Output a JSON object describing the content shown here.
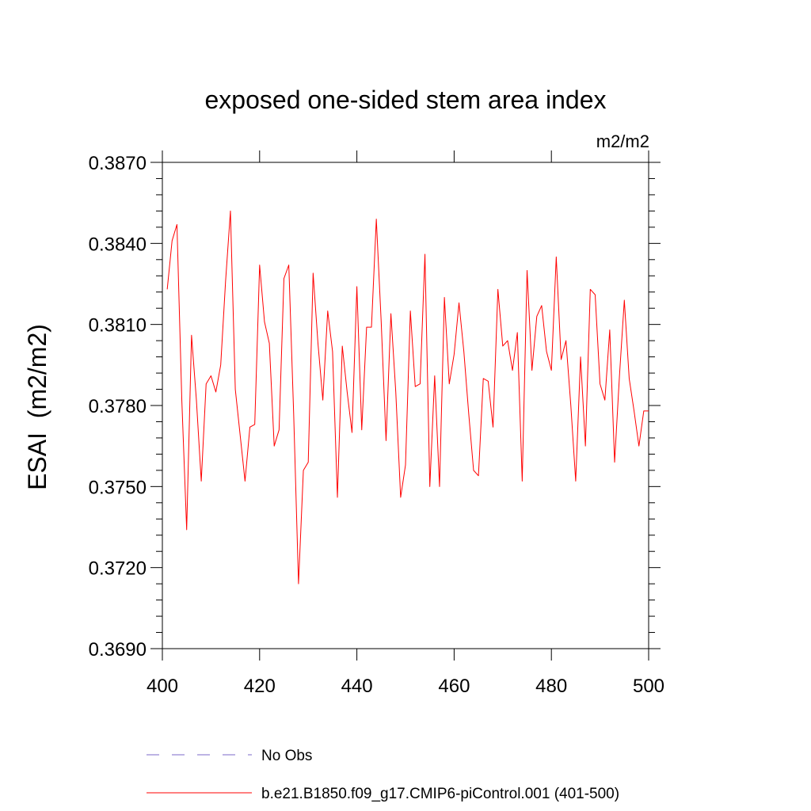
{
  "chart_data": {
    "type": "line",
    "title": "exposed one-sided stem area index",
    "units_label": "m2/m2",
    "ylabel": "ESAI  (m2/m2)",
    "xlabel": "",
    "xlim": [
      400,
      500
    ],
    "ylim": [
      0.369,
      0.387
    ],
    "xticks": [
      400,
      420,
      440,
      460,
      480,
      500
    ],
    "xtick_labels": [
      "400",
      "420",
      "440",
      "460",
      "480",
      "500"
    ],
    "yticks": [
      0.369,
      0.372,
      0.375,
      0.378,
      0.381,
      0.384,
      0.387
    ],
    "ytick_labels": [
      "0.3690",
      "0.3720",
      "0.3750",
      "0.3780",
      "0.3810",
      "0.3840",
      "0.3870"
    ],
    "grid": false,
    "legend_position": "bottom",
    "legend": [
      {
        "label": "No Obs",
        "color": "#7b68c8",
        "style": "dashed"
      },
      {
        "label": "b.e21.B1850.f09_g17.CMIP6-piControl.001 (401-500)",
        "color": "#ff0000",
        "style": "solid"
      }
    ],
    "series": [
      {
        "name": "b.e21.B1850.f09_g17.CMIP6-piControl.001 (401-500)",
        "color": "#ff0000",
        "x": [
          401,
          402,
          403,
          404,
          405,
          406,
          407,
          408,
          409,
          410,
          411,
          412,
          413,
          414,
          415,
          416,
          417,
          418,
          419,
          420,
          421,
          422,
          423,
          424,
          425,
          426,
          427,
          428,
          429,
          430,
          431,
          432,
          433,
          434,
          435,
          436,
          437,
          438,
          439,
          440,
          441,
          442,
          443,
          444,
          445,
          446,
          447,
          448,
          449,
          450,
          451,
          452,
          453,
          454,
          455,
          456,
          457,
          458,
          459,
          460,
          461,
          462,
          463,
          464,
          465,
          466,
          467,
          468,
          469,
          470,
          471,
          472,
          473,
          474,
          475,
          476,
          477,
          478,
          479,
          480,
          481,
          482,
          483,
          484,
          485,
          486,
          487,
          488,
          489,
          490,
          491,
          492,
          493,
          494,
          495,
          496,
          497,
          498,
          499,
          500
        ],
        "values": [
          0.3823,
          0.3841,
          0.3847,
          0.3782,
          0.3734,
          0.3806,
          0.3782,
          0.3752,
          0.3788,
          0.3791,
          0.3785,
          0.3795,
          0.3826,
          0.3852,
          0.3786,
          0.3769,
          0.3752,
          0.3772,
          0.3773,
          0.3832,
          0.3811,
          0.3803,
          0.3765,
          0.3771,
          0.3827,
          0.3832,
          0.3777,
          0.3714,
          0.3756,
          0.3759,
          0.3829,
          0.3803,
          0.3782,
          0.3815,
          0.38,
          0.3746,
          0.3802,
          0.3785,
          0.377,
          0.3824,
          0.3771,
          0.3809,
          0.3809,
          0.3849,
          0.3811,
          0.3767,
          0.3814,
          0.3785,
          0.3746,
          0.3758,
          0.3815,
          0.3787,
          0.3788,
          0.3836,
          0.375,
          0.3791,
          0.375,
          0.382,
          0.3788,
          0.3799,
          0.3818,
          0.38,
          0.3777,
          0.3756,
          0.3754,
          0.379,
          0.3789,
          0.3772,
          0.3823,
          0.3802,
          0.3804,
          0.3793,
          0.3807,
          0.3752,
          0.383,
          0.3793,
          0.3813,
          0.3817,
          0.38,
          0.3793,
          0.3835,
          0.3797,
          0.3804,
          0.378,
          0.3752,
          0.3798,
          0.3765,
          0.3823,
          0.3821,
          0.3788,
          0.3782,
          0.3808,
          0.3759,
          0.3791,
          0.3819,
          0.379,
          0.3778,
          0.3765,
          0.3778,
          0.3778
        ]
      }
    ]
  }
}
